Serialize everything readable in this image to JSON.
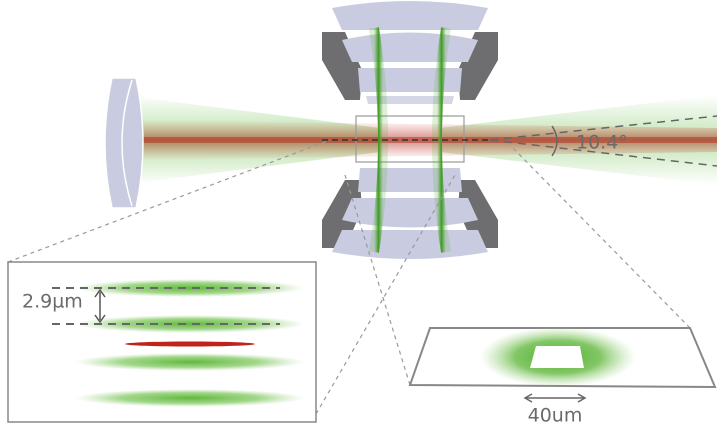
{
  "labels": {
    "spacing": "2.9µm",
    "angle": "10.4°",
    "spot_size": "40um"
  }
}
